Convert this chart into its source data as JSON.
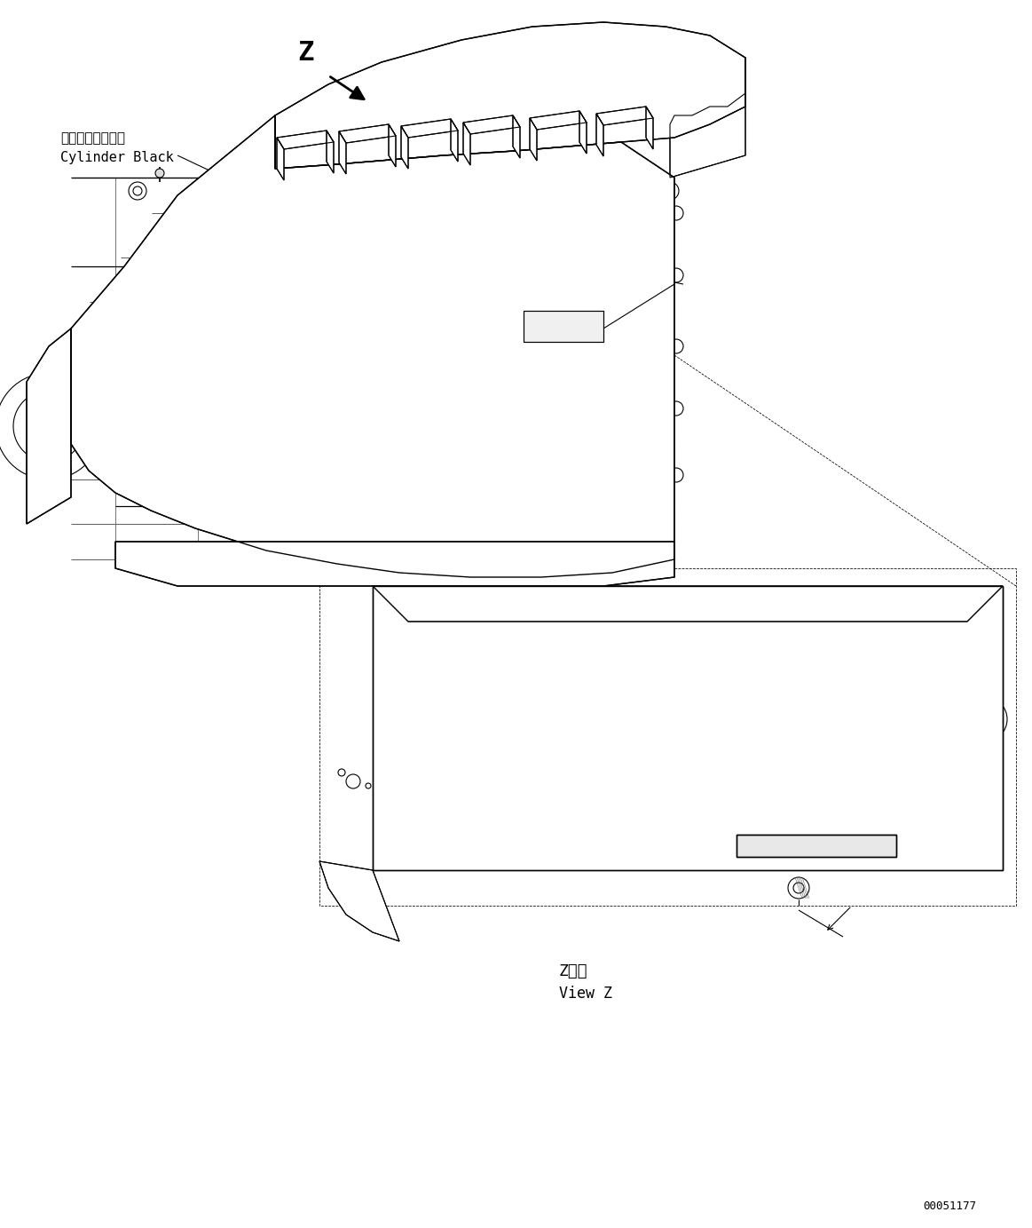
{
  "bg_color": "#ffffff",
  "diagram_id": "00051177",
  "label_z": "Z",
  "label_cylinder_jp": "シリンダブロック",
  "label_cylinder_en": "Cylinder Black",
  "label_view_z_jp": "Z　視",
  "label_view_z_en": "View Z",
  "figsize": [
    11.63,
    13.83
  ],
  "dpi": 100
}
